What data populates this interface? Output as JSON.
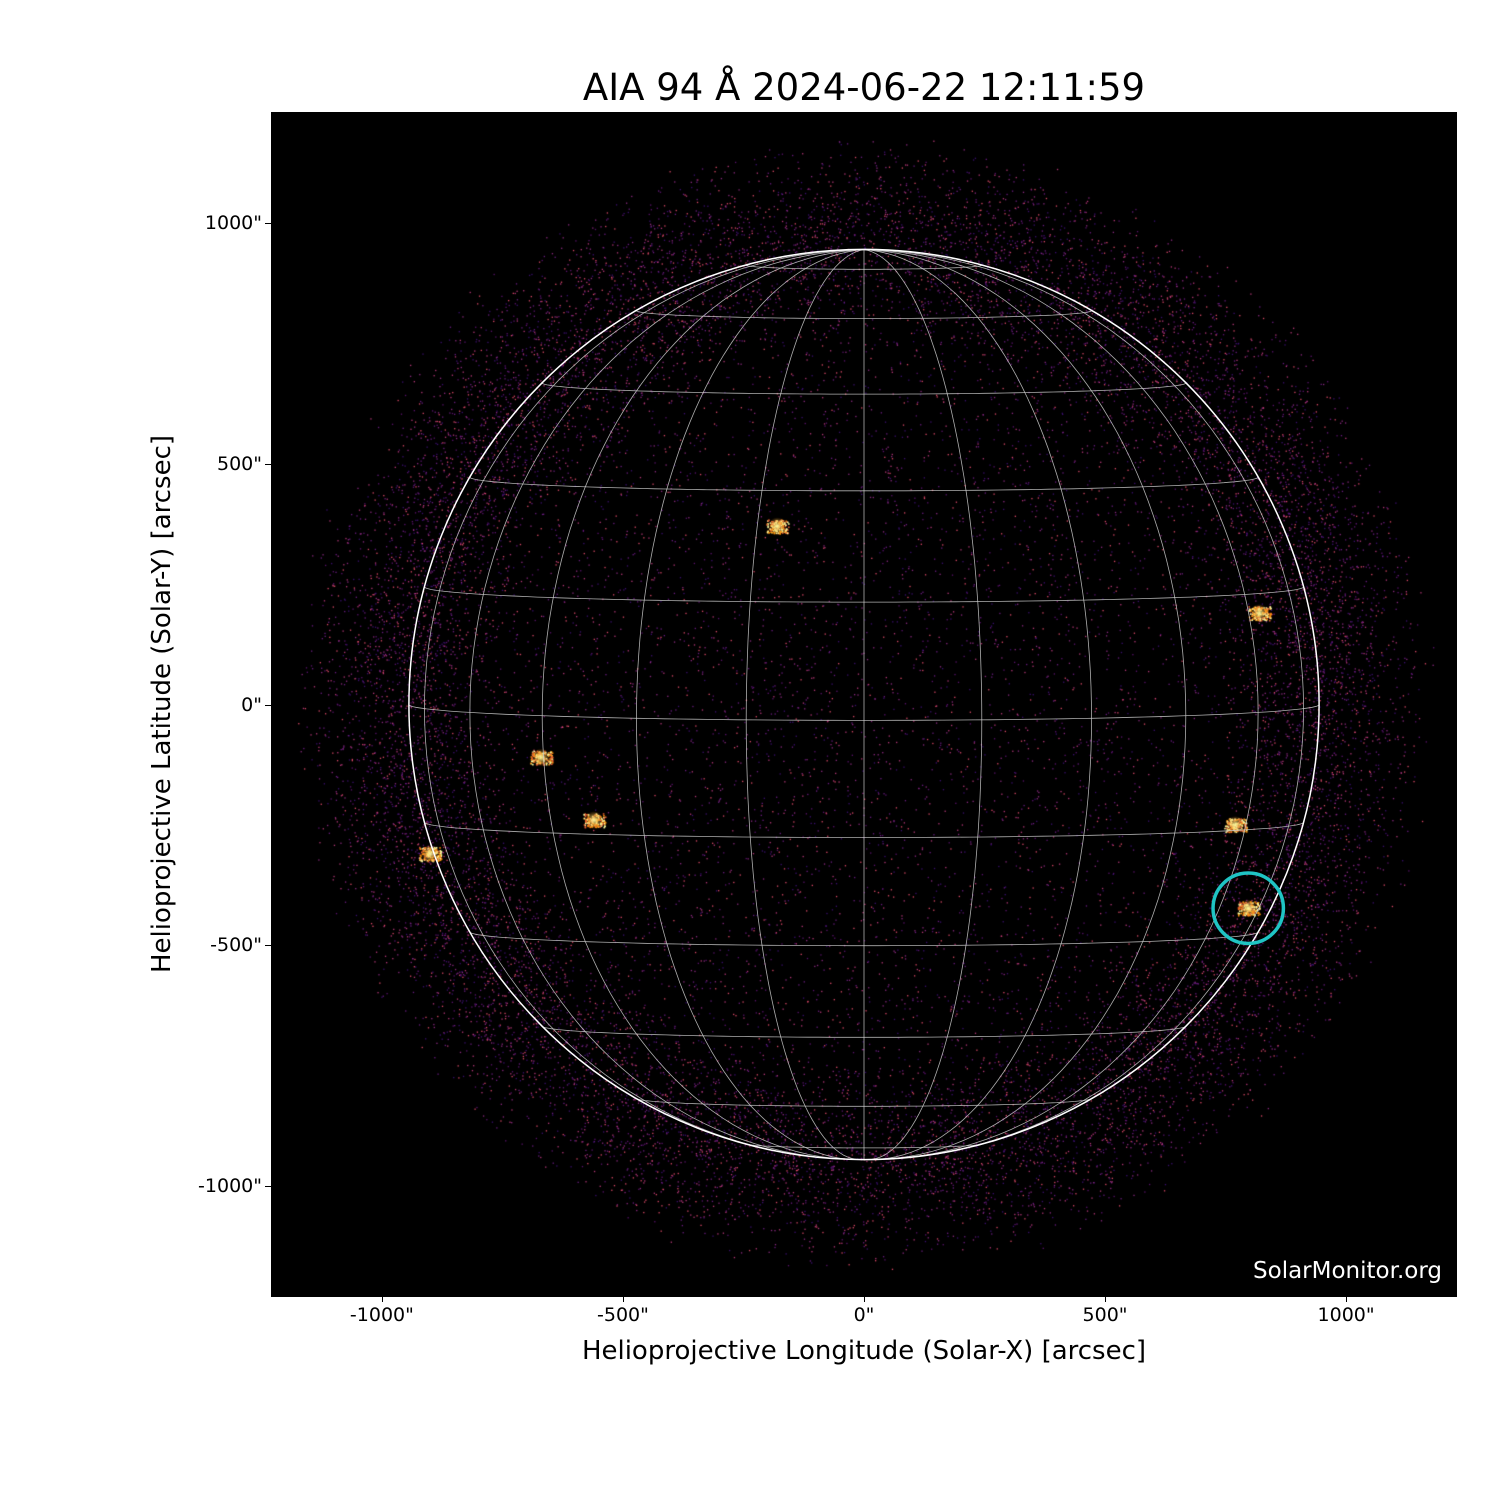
{
  "chart_data": {
    "type": "heatmap",
    "title": "AIA 94 Å 2024-06-22 12:11:59",
    "xlabel": "Helioprojective Longitude (Solar-X) [arcsec]",
    "ylabel": "Helioprojective Latitude (Solar-Y) [arcsec]",
    "xlim": [
      -1228,
      1228
    ],
    "ylim": [
      -1228,
      1228
    ],
    "xticks": [
      {
        "value": -1000,
        "label": "-1000\""
      },
      {
        "value": -500,
        "label": "-500\""
      },
      {
        "value": 0,
        "label": "0\""
      },
      {
        "value": 500,
        "label": "500\""
      },
      {
        "value": 1000,
        "label": "1000\""
      }
    ],
    "yticks": [
      {
        "value": 1000,
        "label": "1000\""
      },
      {
        "value": 500,
        "label": "500\""
      },
      {
        "value": 0,
        "label": "0\""
      },
      {
        "value": -500,
        "label": "-500\""
      },
      {
        "value": -1000,
        "label": "-1000\""
      }
    ],
    "colormap": "inferno-like (black-purple-orange-yellow)",
    "solar_radius_arcsec": 944,
    "grid": {
      "lat_spacing_deg": 15,
      "lon_spacing_deg": 15,
      "b0_deg": 2,
      "color": "#cccccc"
    },
    "bright_features": [
      {
        "x": -180,
        "y": 370
      },
      {
        "x": -670,
        "y": -110
      },
      {
        "x": -560,
        "y": -240
      },
      {
        "x": -900,
        "y": -310
      },
      {
        "x": 820,
        "y": 190
      },
      {
        "x": 770,
        "y": -250
      },
      {
        "x": 797,
        "y": -423
      }
    ],
    "highlight_circle": {
      "x": 797,
      "y": -423,
      "radius": 73,
      "color": "#1fc4c4"
    },
    "watermark": "SolarMonitor.org"
  }
}
